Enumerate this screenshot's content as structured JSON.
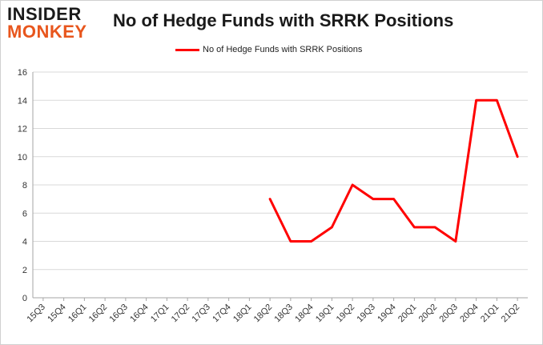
{
  "logo": {
    "line1": "INSIDER",
    "line2": "MONKEY"
  },
  "colors": {
    "series": "#ff0000",
    "grid": "#d9d9d9",
    "axis": "#a6a6a6",
    "logo_accent": "#e8561d"
  },
  "chart_data": {
    "type": "line",
    "title": "No of Hedge Funds with SRRK Positions",
    "xlabel": "",
    "ylabel": "",
    "categories": [
      "15Q3",
      "15Q4",
      "16Q1",
      "16Q2",
      "16Q3",
      "16Q4",
      "17Q1",
      "17Q2",
      "17Q3",
      "17Q4",
      "18Q1",
      "18Q2",
      "18Q3",
      "18Q4",
      "19Q1",
      "19Q2",
      "19Q3",
      "19Q4",
      "20Q1",
      "20Q2",
      "20Q3",
      "20Q4",
      "21Q1",
      "21Q2"
    ],
    "series": [
      {
        "name": "No of Hedge Funds with SRRK Positions",
        "values": [
          null,
          null,
          null,
          null,
          null,
          null,
          null,
          null,
          null,
          null,
          null,
          7,
          4,
          4,
          5,
          8,
          7,
          7,
          5,
          5,
          4,
          14,
          14,
          10
        ]
      }
    ],
    "ylim": [
      0,
      16
    ],
    "yticks": [
      0,
      2,
      4,
      6,
      8,
      10,
      12,
      14,
      16
    ],
    "grid": true,
    "legend": "top-center"
  }
}
